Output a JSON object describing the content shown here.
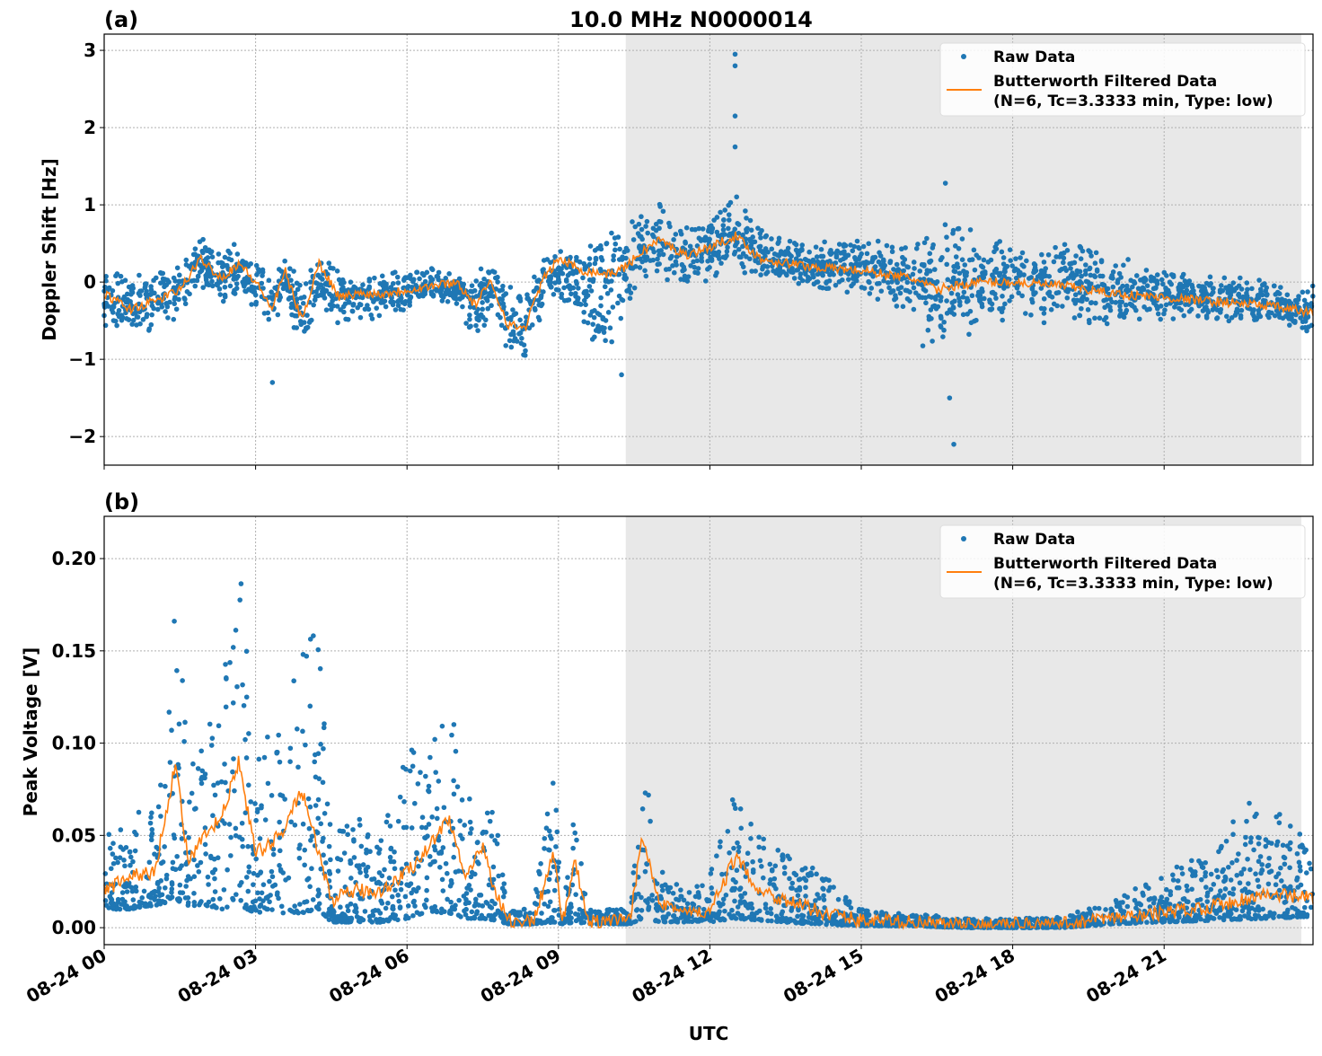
{
  "chart_data": [
    {
      "type": "scatter+line",
      "panel_label": "(a)",
      "title": "10.0 MHz N0000014",
      "ylabel": "Doppler Shift [Hz]",
      "xlabel": "",
      "ylim": [
        -2.37,
        3.21
      ],
      "xlim": [
        "08-24 00:00",
        "08-24 23:57"
      ],
      "yticks": [
        -2,
        -1,
        0,
        1,
        2,
        3
      ],
      "ytick_labels": [
        "−2",
        "−1",
        "0",
        "1",
        "2",
        "3"
      ],
      "grid": true,
      "legend_position": "top-right",
      "shaded_interval": [
        "08-24 10:20",
        "08-24 23:43"
      ],
      "legend": [
        "Raw Data",
        "Butterworth Filtered Data\n(N=6, Tc=3.3333 min, Type: low)"
      ],
      "raw_envelope": {
        "t": [
          "00:00",
          "00:30",
          "01:00",
          "01:30",
          "01:55",
          "02:20",
          "02:40",
          "03:00",
          "03:20",
          "03:35",
          "03:55",
          "04:15",
          "04:40",
          "05:00",
          "05:30",
          "06:00",
          "06:30",
          "07:00",
          "07:20",
          "07:40",
          "08:00",
          "08:20",
          "08:40",
          "09:00",
          "09:30",
          "10:00",
          "10:20",
          "10:40",
          "11:00",
          "11:30",
          "12:00",
          "12:30",
          "13:00",
          "14:00",
          "15:00",
          "16:00",
          "16:30",
          "16:50",
          "17:20",
          "18:00",
          "19:00",
          "20:00",
          "21:00",
          "22:00",
          "23:00",
          "23:57"
        ],
        "min": [
          -0.6,
          -0.8,
          -0.7,
          -0.5,
          -0.1,
          -0.3,
          -0.15,
          -0.4,
          -0.7,
          -0.3,
          -0.9,
          -0.4,
          -0.6,
          -0.5,
          -0.5,
          -0.4,
          -0.3,
          -0.3,
          -0.8,
          -0.4,
          -1.2,
          -1.1,
          -0.5,
          -0.2,
          -0.7,
          -1.0,
          -0.6,
          -0.1,
          0.0,
          -0.1,
          -0.1,
          0.1,
          0.0,
          -0.1,
          -0.2,
          -0.5,
          -1.3,
          -1.1,
          -0.6,
          -0.5,
          -0.6,
          -0.6,
          -0.5,
          -0.5,
          -0.55,
          -0.7
        ],
        "max": [
          0.2,
          0.1,
          0.2,
          0.3,
          0.7,
          0.4,
          0.55,
          0.3,
          0.2,
          0.35,
          0.0,
          0.4,
          0.2,
          0.1,
          0.15,
          0.15,
          0.2,
          0.15,
          0.1,
          0.3,
          0.1,
          0.0,
          0.4,
          0.45,
          0.6,
          0.9,
          0.9,
          0.9,
          1.05,
          0.8,
          0.95,
          1.2,
          0.7,
          0.5,
          0.6,
          0.5,
          1.0,
          0.9,
          0.6,
          0.55,
          0.6,
          0.4,
          0.15,
          0.1,
          0.05,
          0.0
        ]
      },
      "filtered": {
        "t": [
          "00:00",
          "00:30",
          "01:00",
          "01:30",
          "01:55",
          "02:20",
          "02:40",
          "03:00",
          "03:20",
          "03:35",
          "03:55",
          "04:15",
          "04:40",
          "05:00",
          "05:30",
          "06:00",
          "06:30",
          "07:00",
          "07:20",
          "07:40",
          "08:00",
          "08:20",
          "08:40",
          "09:00",
          "09:30",
          "10:00",
          "10:20",
          "10:40",
          "11:00",
          "11:30",
          "12:00",
          "12:30",
          "13:00",
          "14:00",
          "15:00",
          "16:00",
          "16:30",
          "16:50",
          "17:20",
          "18:00",
          "19:00",
          "20:00",
          "21:00",
          "22:00",
          "23:00",
          "23:57"
        ],
        "values": [
          -0.15,
          -0.35,
          -0.25,
          -0.1,
          0.3,
          0.05,
          0.25,
          0.0,
          -0.35,
          0.15,
          -0.5,
          0.25,
          -0.2,
          -0.15,
          -0.15,
          -0.1,
          -0.05,
          0.0,
          -0.3,
          0.0,
          -0.55,
          -0.6,
          0.0,
          0.3,
          0.15,
          0.1,
          0.2,
          0.4,
          0.55,
          0.35,
          0.45,
          0.6,
          0.3,
          0.2,
          0.15,
          0.05,
          -0.1,
          -0.05,
          0.0,
          0.0,
          -0.05,
          -0.15,
          -0.2,
          -0.25,
          -0.3,
          -0.4
        ]
      },
      "outliers": {
        "t": [
          "12:30",
          "12:30",
          "12:30",
          "12:30",
          "16:40",
          "16:45",
          "16:50",
          "03:20",
          "10:15"
        ],
        "values": [
          2.95,
          2.8,
          2.15,
          1.75,
          1.28,
          -1.5,
          -2.1,
          -1.3,
          -1.2
        ]
      }
    },
    {
      "type": "scatter+line",
      "panel_label": "(b)",
      "title": "",
      "ylabel": "Peak Voltage [V]",
      "xlabel": "UTC",
      "ylim": [
        -0.0092,
        0.2229
      ],
      "xlim": [
        "08-24 00:00",
        "08-24 23:57"
      ],
      "yticks": [
        0,
        0.05,
        0.1,
        0.15,
        0.2
      ],
      "ytick_labels": [
        "0.00",
        "0.05",
        "0.10",
        "0.15",
        "0.20"
      ],
      "xtick_labels": [
        "08-24 00",
        "08-24 03",
        "08-24 06",
        "08-24 09",
        "08-24 12",
        "08-24 15",
        "08-24 18",
        "08-24 21"
      ],
      "grid": true,
      "legend_position": "top-right",
      "shaded_interval": [
        "08-24 10:20",
        "08-24 23:43"
      ],
      "legend": [
        "Raw Data",
        "Butterworth Filtered Data\n(N=6, Tc=3.3333 min, Type: low)"
      ],
      "raw_envelope": {
        "t": [
          "00:00",
          "00:30",
          "01:00",
          "01:25",
          "01:40",
          "02:00",
          "02:20",
          "02:40",
          "03:00",
          "03:30",
          "03:55",
          "04:15",
          "04:30",
          "05:00",
          "05:30",
          "06:00",
          "06:20",
          "06:50",
          "07:10",
          "07:30",
          "07:45",
          "08:00",
          "08:30",
          "08:55",
          "09:05",
          "09:20",
          "09:35",
          "10:00",
          "10:25",
          "10:40",
          "11:00",
          "11:30",
          "12:00",
          "12:30",
          "13:00",
          "13:30",
          "14:00",
          "15:00",
          "16:00",
          "17:00",
          "18:00",
          "19:00",
          "20:00",
          "21:00",
          "22:00",
          "23:00",
          "23:57"
        ],
        "min": [
          0.01,
          0.01,
          0.012,
          0.015,
          0.012,
          0.012,
          0.01,
          0.012,
          0.008,
          0.008,
          0.008,
          0.01,
          0.003,
          0.003,
          0.003,
          0.005,
          0.008,
          0.008,
          0.005,
          0.005,
          0.004,
          0.002,
          0.002,
          0.003,
          0.002,
          0.003,
          0.002,
          0.002,
          0.002,
          0.005,
          0.003,
          0.003,
          0.003,
          0.005,
          0.004,
          0.003,
          0.002,
          0.001,
          0.001,
          0.0,
          0.0,
          0.0,
          0.002,
          0.003,
          0.004,
          0.005,
          0.006
        ],
        "min_note": "",
        "max": [
          0.05,
          0.06,
          0.07,
          0.19,
          0.1,
          0.1,
          0.15,
          0.21,
          0.1,
          0.11,
          0.15,
          0.17,
          0.05,
          0.06,
          0.05,
          0.1,
          0.09,
          0.13,
          0.07,
          0.09,
          0.06,
          0.01,
          0.01,
          0.09,
          0.01,
          0.065,
          0.01,
          0.01,
          0.01,
          0.09,
          0.04,
          0.02,
          0.03,
          0.075,
          0.05,
          0.04,
          0.035,
          0.01,
          0.008,
          0.005,
          0.005,
          0.006,
          0.015,
          0.03,
          0.045,
          0.08,
          0.04
        ]
      },
      "filtered": {
        "t": [
          "00:00",
          "00:30",
          "01:00",
          "01:25",
          "01:40",
          "02:00",
          "02:20",
          "02:40",
          "03:00",
          "03:30",
          "03:55",
          "04:15",
          "04:30",
          "05:00",
          "05:30",
          "06:00",
          "06:20",
          "06:50",
          "07:10",
          "07:30",
          "07:45",
          "08:00",
          "08:30",
          "08:55",
          "09:05",
          "09:20",
          "09:35",
          "10:00",
          "10:25",
          "10:40",
          "11:00",
          "11:30",
          "12:00",
          "12:30",
          "13:00",
          "13:30",
          "14:00",
          "15:00",
          "16:00",
          "17:00",
          "18:00",
          "19:00",
          "20:00",
          "21:00",
          "22:00",
          "23:00",
          "23:57"
        ],
        "values": [
          0.02,
          0.028,
          0.03,
          0.09,
          0.035,
          0.05,
          0.06,
          0.09,
          0.04,
          0.05,
          0.075,
          0.04,
          0.015,
          0.02,
          0.02,
          0.03,
          0.04,
          0.06,
          0.025,
          0.045,
          0.02,
          0.004,
          0.003,
          0.04,
          0.004,
          0.035,
          0.003,
          0.003,
          0.004,
          0.05,
          0.015,
          0.008,
          0.008,
          0.038,
          0.02,
          0.015,
          0.01,
          0.004,
          0.003,
          0.001,
          0.002,
          0.002,
          0.005,
          0.008,
          0.012,
          0.018,
          0.016
        ]
      }
    }
  ]
}
